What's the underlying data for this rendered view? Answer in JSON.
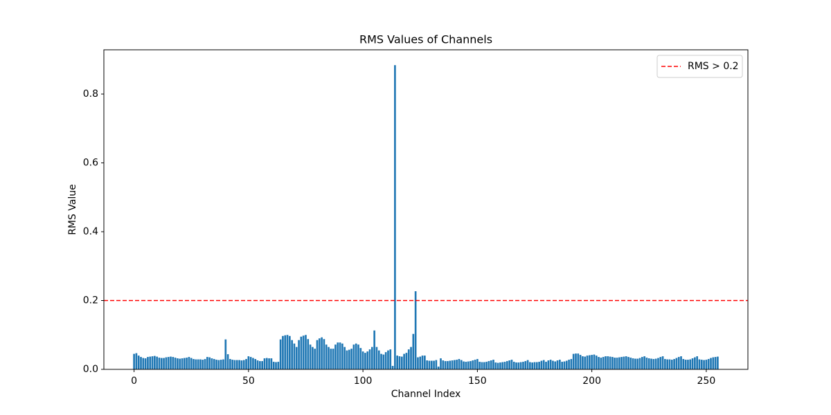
{
  "chart_data": {
    "type": "bar",
    "title": "RMS Values of Channels",
    "xlabel": "Channel Index",
    "ylabel": "RMS Value",
    "color": "#1f77b4",
    "bar_width": 0.8,
    "x": [
      0,
      1,
      2,
      3,
      4,
      5,
      6,
      7,
      8,
      9,
      10,
      11,
      12,
      13,
      14,
      15,
      16,
      17,
      18,
      19,
      20,
      21,
      22,
      23,
      24,
      25,
      26,
      27,
      28,
      29,
      30,
      31,
      32,
      33,
      34,
      35,
      36,
      37,
      38,
      39,
      40,
      41,
      42,
      43,
      44,
      45,
      46,
      47,
      48,
      49,
      50,
      51,
      52,
      53,
      54,
      55,
      56,
      57,
      58,
      59,
      60,
      61,
      62,
      63,
      64,
      65,
      66,
      67,
      68,
      69,
      70,
      71,
      72,
      73,
      74,
      75,
      76,
      77,
      78,
      79,
      80,
      81,
      82,
      83,
      84,
      85,
      86,
      87,
      88,
      89,
      90,
      91,
      92,
      93,
      94,
      95,
      96,
      97,
      98,
      99,
      100,
      101,
      102,
      103,
      104,
      105,
      106,
      107,
      108,
      109,
      110,
      111,
      112,
      113,
      114,
      115,
      116,
      117,
      118,
      119,
      120,
      121,
      122,
      123,
      124,
      125,
      126,
      127,
      128,
      129,
      130,
      131,
      132,
      133,
      134,
      135,
      136,
      137,
      138,
      139,
      140,
      141,
      142,
      143,
      144,
      145,
      146,
      147,
      148,
      149,
      150,
      151,
      152,
      153,
      154,
      155,
      156,
      157,
      158,
      159,
      160,
      161,
      162,
      163,
      164,
      165,
      166,
      167,
      168,
      169,
      170,
      171,
      172,
      173,
      174,
      175,
      176,
      177,
      178,
      179,
      180,
      181,
      182,
      183,
      184,
      185,
      186,
      187,
      188,
      189,
      190,
      191,
      192,
      193,
      194,
      195,
      196,
      197,
      198,
      199,
      200,
      201,
      202,
      203,
      204,
      205,
      206,
      207,
      208,
      209,
      210,
      211,
      212,
      213,
      214,
      215,
      216,
      217,
      218,
      219,
      220,
      221,
      222,
      223,
      224,
      225,
      226,
      227,
      228,
      229,
      230,
      231,
      232,
      233,
      234,
      235,
      236,
      237,
      238,
      239,
      240,
      241,
      242,
      243,
      244,
      245,
      246,
      247,
      248,
      249,
      250,
      251,
      252,
      253,
      254,
      255
    ],
    "values": [
      0.045,
      0.047,
      0.04,
      0.036,
      0.033,
      0.032,
      0.036,
      0.037,
      0.038,
      0.039,
      0.037,
      0.034,
      0.033,
      0.033,
      0.035,
      0.036,
      0.037,
      0.036,
      0.034,
      0.032,
      0.031,
      0.032,
      0.033,
      0.034,
      0.036,
      0.033,
      0.03,
      0.029,
      0.029,
      0.029,
      0.028,
      0.03,
      0.036,
      0.035,
      0.032,
      0.03,
      0.028,
      0.027,
      0.028,
      0.029,
      0.087,
      0.044,
      0.03,
      0.028,
      0.027,
      0.027,
      0.027,
      0.026,
      0.027,
      0.03,
      0.038,
      0.036,
      0.033,
      0.03,
      0.026,
      0.024,
      0.024,
      0.032,
      0.033,
      0.032,
      0.032,
      0.022,
      0.021,
      0.022,
      0.087,
      0.097,
      0.099,
      0.1,
      0.097,
      0.085,
      0.075,
      0.065,
      0.085,
      0.095,
      0.098,
      0.1,
      0.088,
      0.072,
      0.065,
      0.06,
      0.085,
      0.09,
      0.093,
      0.088,
      0.072,
      0.065,
      0.06,
      0.06,
      0.072,
      0.078,
      0.078,
      0.075,
      0.065,
      0.055,
      0.057,
      0.06,
      0.072,
      0.075,
      0.072,
      0.062,
      0.052,
      0.048,
      0.052,
      0.058,
      0.065,
      0.113,
      0.065,
      0.055,
      0.045,
      0.043,
      0.05,
      0.055,
      0.058,
      0.01,
      0.884,
      0.04,
      0.038,
      0.037,
      0.045,
      0.048,
      0.058,
      0.065,
      0.103,
      0.227,
      0.035,
      0.037,
      0.04,
      0.04,
      0.026,
      0.025,
      0.025,
      0.025,
      0.027,
      0.008,
      0.032,
      0.026,
      0.024,
      0.024,
      0.025,
      0.026,
      0.027,
      0.028,
      0.03,
      0.027,
      0.023,
      0.022,
      0.023,
      0.024,
      0.026,
      0.028,
      0.03,
      0.022,
      0.021,
      0.021,
      0.022,
      0.024,
      0.026,
      0.028,
      0.02,
      0.019,
      0.02,
      0.021,
      0.022,
      0.024,
      0.026,
      0.028,
      0.022,
      0.02,
      0.02,
      0.021,
      0.022,
      0.024,
      0.027,
      0.021,
      0.02,
      0.021,
      0.021,
      0.022,
      0.025,
      0.027,
      0.022,
      0.026,
      0.028,
      0.025,
      0.023,
      0.026,
      0.028,
      0.022,
      0.023,
      0.025,
      0.028,
      0.03,
      0.045,
      0.046,
      0.046,
      0.042,
      0.038,
      0.037,
      0.04,
      0.041,
      0.042,
      0.043,
      0.04,
      0.036,
      0.034,
      0.036,
      0.038,
      0.038,
      0.037,
      0.036,
      0.034,
      0.034,
      0.035,
      0.036,
      0.037,
      0.038,
      0.036,
      0.034,
      0.032,
      0.031,
      0.031,
      0.033,
      0.036,
      0.038,
      0.034,
      0.032,
      0.031,
      0.03,
      0.031,
      0.033,
      0.036,
      0.038,
      0.03,
      0.029,
      0.029,
      0.028,
      0.03,
      0.033,
      0.036,
      0.038,
      0.03,
      0.028,
      0.028,
      0.029,
      0.032,
      0.035,
      0.038,
      0.029,
      0.028,
      0.027,
      0.028,
      0.03,
      0.033,
      0.035,
      0.036,
      0.037
    ],
    "xlim": [
      -13.19,
      268.19
    ],
    "xticks": [
      0,
      50,
      100,
      150,
      200,
      250
    ],
    "ylim": [
      0,
      0.9286
    ],
    "yticks": [
      {
        "value": 0,
        "label": "0.0"
      },
      0.2,
      0.4,
      0.6,
      0.8
    ],
    "hlines": [
      {
        "label": "RMS > 0.2",
        "value": 0.2,
        "color": "#ff0000",
        "style": "dashed"
      }
    ],
    "legend": "upper right"
  }
}
